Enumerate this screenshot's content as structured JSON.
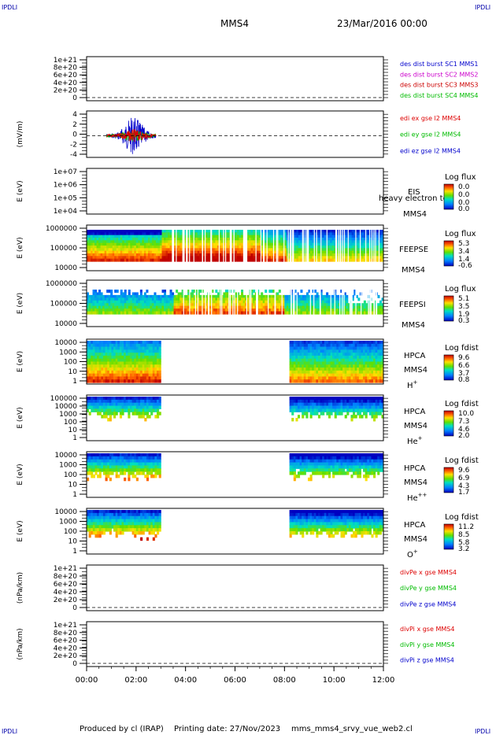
{
  "corner_label": "IPDLI",
  "header": {
    "spacecraft": "MMS4",
    "datetime": "23/Mar/2016 00:00"
  },
  "footer": {
    "produced_by": "Produced by cl (IRAP)",
    "printing_date": "Printing date: 27/Nov/2023",
    "script": "mms_mms4_srvy_vue_web2.cl"
  },
  "colors": {
    "mms1": "#0000cc",
    "mms2": "#cc00cc",
    "mms3": "#cc0000",
    "mms4": "#00bb00",
    "ex": "#dd0000",
    "ey": "#00bb00",
    "ez": "#0000cc"
  },
  "chart_data": [
    {
      "type": "line",
      "ylabel": "",
      "y_ticks": [
        "1e+21",
        "8e+20",
        "6e+20",
        "4e+20",
        "2e+20",
        "0"
      ],
      "dashed_zero": true,
      "series": [
        {
          "name": "des dist burst SC1 MMS1",
          "color": "#0000cc",
          "values": []
        },
        {
          "name": "des dist burst SC2 MMS2",
          "color": "#cc00cc",
          "values": []
        },
        {
          "name": "des dist burst SC3 MMS3",
          "color": "#cc0000",
          "values": []
        },
        {
          "name": "des dist burst SC4 MMS4",
          "color": "#00bb00",
          "values": []
        }
      ]
    },
    {
      "type": "line",
      "ylabel": "(mV/m)",
      "y_ticks": [
        "4",
        "2",
        "0",
        "-2",
        "-4"
      ],
      "ylim": [
        -5,
        5
      ],
      "dashed_zero": true,
      "burst_interval_hours": [
        0.8,
        2.8
      ],
      "series": [
        {
          "name": "edi ex gse l2 MMS4",
          "color": "#dd0000"
        },
        {
          "name": "edi ey gse l2 MMS4",
          "color": "#00bb00"
        },
        {
          "name": "edi ez gse l2 MMS4",
          "color": "#0000cc"
        }
      ]
    },
    {
      "type": "heatmap",
      "ylabel": "E (eV)",
      "y_ticks": [
        "1e+07",
        "1e+06",
        "1e+05",
        "1e+04"
      ],
      "labels": [
        "EIS",
        "heavy electron to",
        "MMS4"
      ],
      "colorbar": {
        "title": "Log flux",
        "ticks": [
          "0.0",
          "0.0",
          "0.0",
          "0.0"
        ]
      }
    },
    {
      "type": "heatmap",
      "ylabel": "E (eV)",
      "y_ticks": [
        "1000000",
        "100000",
        "10000"
      ],
      "labels": [
        "FEEPSE",
        "MMS4"
      ],
      "colorbar": {
        "title": "Log flux",
        "ticks": [
          "5.3",
          "3.4",
          "1.4",
          "-0.6"
        ]
      }
    },
    {
      "type": "heatmap",
      "ylabel": "E (eV)",
      "y_ticks": [
        "1000000",
        "100000",
        "10000"
      ],
      "labels": [
        "FEEPSI",
        "MMS4"
      ],
      "colorbar": {
        "title": "Log flux",
        "ticks": [
          "5.1",
          "3.5",
          "1.9",
          "0.3"
        ]
      }
    },
    {
      "type": "heatmap",
      "ylabel": "E (eV)",
      "y_ticks": [
        "10000",
        "1000",
        "100",
        "10",
        "1"
      ],
      "labels": [
        "HPCA",
        "MMS4"
      ],
      "species": "H",
      "species_sup": "+",
      "data_intervals_hours": [
        [
          0,
          3
        ],
        [
          8.2,
          12
        ]
      ],
      "colorbar": {
        "title": "Log fdist",
        "ticks": [
          "9.6",
          "6.6",
          "3.7",
          "0.8"
        ]
      }
    },
    {
      "type": "heatmap",
      "ylabel": "E (eV)",
      "y_ticks": [
        "100000",
        "10000",
        "1000",
        "100",
        "10",
        "1"
      ],
      "labels": [
        "HPCA",
        "MMS4"
      ],
      "species": "He",
      "species_sup": "+",
      "data_intervals_hours": [
        [
          0,
          3
        ],
        [
          8.2,
          12
        ]
      ],
      "colorbar": {
        "title": "Log fdist",
        "ticks": [
          "10.0",
          "7.3",
          "4.6",
          "2.0"
        ]
      }
    },
    {
      "type": "heatmap",
      "ylabel": "E (eV)",
      "y_ticks": [
        "10000",
        "1000",
        "100",
        "10",
        "1"
      ],
      "labels": [
        "HPCA",
        "MMS4"
      ],
      "species": "He",
      "species_sup": "++",
      "data_intervals_hours": [
        [
          0,
          3
        ],
        [
          8.2,
          12
        ]
      ],
      "colorbar": {
        "title": "Log fdist",
        "ticks": [
          "9.6",
          "6.9",
          "4.3",
          "1.7"
        ]
      }
    },
    {
      "type": "heatmap",
      "ylabel": "E (eV)",
      "y_ticks": [
        "10000",
        "1000",
        "100",
        "10",
        "1"
      ],
      "labels": [
        "HPCA",
        "MMS4"
      ],
      "species": "O",
      "species_sup": "+",
      "data_intervals_hours": [
        [
          0,
          3
        ],
        [
          8.2,
          12
        ]
      ],
      "colorbar": {
        "title": "Log fdist",
        "ticks": [
          "11.2",
          "8.5",
          "5.8",
          "3.2"
        ]
      }
    },
    {
      "type": "line",
      "ylabel": "(nPa/km)",
      "y_ticks": [
        "1e+21",
        "8e+20",
        "6e+20",
        "4e+20",
        "2e+20",
        "0"
      ],
      "dashed_zero": true,
      "series": [
        {
          "name": "divPe x gse MMS4",
          "color": "#dd0000",
          "values": []
        },
        {
          "name": "divPe y gse MMS4",
          "color": "#00bb00",
          "values": []
        },
        {
          "name": "divPe z gse MMS4",
          "color": "#0000cc",
          "values": []
        }
      ]
    },
    {
      "type": "line",
      "ylabel": "(nPa/km)",
      "y_ticks": [
        "1e+21",
        "8e+20",
        "6e+20",
        "4e+20",
        "2e+20",
        "0"
      ],
      "dashed_zero": true,
      "series": [
        {
          "name": "divPi x gse MMS4",
          "color": "#dd0000",
          "values": []
        },
        {
          "name": "divPi y gse MMS4",
          "color": "#00bb00",
          "values": []
        },
        {
          "name": "divPi z gse MMS4",
          "color": "#0000cc",
          "values": []
        }
      ]
    }
  ],
  "x_axis": {
    "ticks": [
      "00:00",
      "02:00",
      "04:00",
      "06:00",
      "08:00",
      "10:00",
      "12:00"
    ],
    "range_hours": [
      0,
      12
    ]
  }
}
